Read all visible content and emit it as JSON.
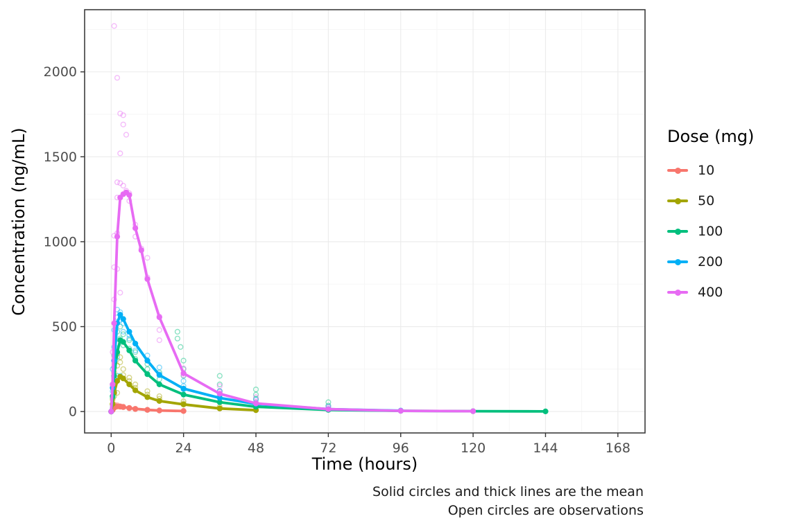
{
  "chart_data": {
    "type": "scatter",
    "title": "",
    "xlabel": "Time (hours)",
    "ylabel": "Concentration (ng/mL)",
    "legend_title": "Dose (mg)",
    "legend_position": "right",
    "grid": true,
    "caption": [
      "Solid circles and thick lines are the mean",
      "Open circles are observations"
    ],
    "xlim": [
      -8.8,
      177
    ],
    "ylim": [
      -126,
      2366
    ],
    "x_ticks": [
      0,
      24,
      48,
      72,
      96,
      120,
      144,
      168
    ],
    "y_ticks": [
      0,
      500,
      1000,
      1500,
      2000
    ],
    "axis_text_color": "#4d4d4d",
    "panel_border_color": "#3c3c3c",
    "grid_major_color": "#ebebeb",
    "grid_minor_color": "#f5f5f5",
    "series": [
      {
        "name": "10",
        "color": "#F8766D",
        "mean": [
          [
            0,
            0
          ],
          [
            0.5,
            10
          ],
          [
            1,
            22
          ],
          [
            2,
            30
          ],
          [
            3,
            29
          ],
          [
            4,
            26
          ],
          [
            6,
            21
          ],
          [
            8,
            16
          ],
          [
            12,
            10
          ],
          [
            16,
            6
          ],
          [
            24,
            3
          ]
        ],
        "observations": [
          [
            0.5,
            8
          ],
          [
            0.5,
            14
          ],
          [
            1,
            24
          ],
          [
            1,
            42
          ],
          [
            2,
            34
          ],
          [
            2,
            38
          ],
          [
            3,
            28
          ],
          [
            3,
            32
          ],
          [
            4,
            26
          ],
          [
            4,
            30
          ],
          [
            6,
            18
          ],
          [
            6,
            22
          ],
          [
            8,
            13
          ],
          [
            8,
            16
          ],
          [
            12,
            9
          ],
          [
            12,
            11
          ],
          [
            16,
            6
          ],
          [
            16,
            7
          ],
          [
            24,
            3
          ],
          [
            24,
            4
          ]
        ]
      },
      {
        "name": "50",
        "color": "#A3A500",
        "mean": [
          [
            0,
            0
          ],
          [
            0.5,
            45
          ],
          [
            1,
            110
          ],
          [
            2,
            180
          ],
          [
            3,
            205
          ],
          [
            4,
            195
          ],
          [
            6,
            160
          ],
          [
            8,
            125
          ],
          [
            12,
            85
          ],
          [
            16,
            62
          ],
          [
            24,
            42
          ],
          [
            36,
            18
          ],
          [
            48,
            8
          ]
        ],
        "observations": [
          [
            0.5,
            40
          ],
          [
            0.5,
            70
          ],
          [
            1,
            90
          ],
          [
            1,
            150
          ],
          [
            1,
            230
          ],
          [
            2,
            110
          ],
          [
            2,
            270
          ],
          [
            2,
            340
          ],
          [
            3,
            290
          ],
          [
            3,
            320
          ],
          [
            4,
            215
          ],
          [
            4,
            250
          ],
          [
            6,
            180
          ],
          [
            6,
            200
          ],
          [
            8,
            140
          ],
          [
            8,
            160
          ],
          [
            12,
            100
          ],
          [
            12,
            120
          ],
          [
            16,
            75
          ],
          [
            16,
            90
          ],
          [
            24,
            48
          ],
          [
            24,
            60
          ],
          [
            36,
            20
          ],
          [
            36,
            28
          ],
          [
            48,
            8
          ],
          [
            48,
            12
          ]
        ]
      },
      {
        "name": "100",
        "color": "#00BF7D",
        "mean": [
          [
            0,
            0
          ],
          [
            0.5,
            90
          ],
          [
            1,
            210
          ],
          [
            2,
            350
          ],
          [
            3,
            420
          ],
          [
            4,
            410
          ],
          [
            6,
            360
          ],
          [
            8,
            300
          ],
          [
            12,
            220
          ],
          [
            16,
            160
          ],
          [
            24,
            100
          ],
          [
            36,
            55
          ],
          [
            48,
            28
          ],
          [
            72,
            10
          ],
          [
            96,
            4
          ],
          [
            120,
            2
          ],
          [
            144,
            1
          ]
        ],
        "observations": [
          [
            0.5,
            80
          ],
          [
            0.5,
            160
          ],
          [
            1,
            120
          ],
          [
            1,
            260
          ],
          [
            1,
            330
          ],
          [
            2,
            210
          ],
          [
            2,
            400
          ],
          [
            2,
            470
          ],
          [
            3,
            430
          ],
          [
            3,
            500
          ],
          [
            4,
            390
          ],
          [
            4,
            455
          ],
          [
            6,
            370
          ],
          [
            6,
            420
          ],
          [
            8,
            310
          ],
          [
            8,
            350
          ],
          [
            12,
            250
          ],
          [
            12,
            280
          ],
          [
            16,
            190
          ],
          [
            16,
            230
          ],
          [
            22,
            470
          ],
          [
            22,
            430
          ],
          [
            23,
            380
          ],
          [
            24,
            210
          ],
          [
            24,
            250
          ],
          [
            24,
            300
          ],
          [
            36,
            120
          ],
          [
            36,
            160
          ],
          [
            36,
            210
          ],
          [
            48,
            75
          ],
          [
            48,
            100
          ],
          [
            48,
            130
          ],
          [
            72,
            35
          ],
          [
            72,
            55
          ]
        ]
      },
      {
        "name": "200",
        "color": "#00B0F6",
        "mean": [
          [
            0,
            0
          ],
          [
            0.5,
            140
          ],
          [
            1,
            300
          ],
          [
            2,
            520
          ],
          [
            3,
            570
          ],
          [
            4,
            545
          ],
          [
            6,
            470
          ],
          [
            8,
            400
          ],
          [
            12,
            300
          ],
          [
            16,
            215
          ],
          [
            24,
            135
          ],
          [
            36,
            80
          ],
          [
            48,
            45
          ],
          [
            72,
            14
          ],
          [
            96,
            5
          ]
        ],
        "observations": [
          [
            0.5,
            120
          ],
          [
            0.5,
            250
          ],
          [
            1,
            200
          ],
          [
            1,
            380
          ],
          [
            1,
            480
          ],
          [
            2,
            320
          ],
          [
            2,
            555
          ],
          [
            2,
            600
          ],
          [
            3,
            210
          ],
          [
            3,
            540
          ],
          [
            3,
            585
          ],
          [
            4,
            470
          ],
          [
            4,
            520
          ],
          [
            6,
            430
          ],
          [
            6,
            450
          ],
          [
            8,
            360
          ],
          [
            8,
            400
          ],
          [
            12,
            300
          ],
          [
            12,
            330
          ],
          [
            16,
            220
          ],
          [
            16,
            260
          ],
          [
            24,
            130
          ],
          [
            24,
            150
          ],
          [
            24,
            180
          ],
          [
            36,
            95
          ],
          [
            36,
            120
          ],
          [
            48,
            50
          ],
          [
            48,
            70
          ],
          [
            72,
            15
          ],
          [
            72,
            28
          ],
          [
            96,
            6
          ]
        ]
      },
      {
        "name": "400",
        "color": "#E76BF3",
        "mean": [
          [
            0,
            0
          ],
          [
            0.5,
            160
          ],
          [
            1,
            520
          ],
          [
            2,
            1030
          ],
          [
            3,
            1260
          ],
          [
            4,
            1280
          ],
          [
            5,
            1290
          ],
          [
            6,
            1275
          ],
          [
            8,
            1080
          ],
          [
            10,
            950
          ],
          [
            12,
            780
          ],
          [
            16,
            555
          ],
          [
            24,
            225
          ],
          [
            36,
            105
          ],
          [
            48,
            48
          ],
          [
            72,
            14
          ],
          [
            96,
            4
          ],
          [
            120,
            2
          ]
        ],
        "observations": [
          [
            0.5,
            150
          ],
          [
            0.5,
            350
          ],
          [
            1,
            300
          ],
          [
            1,
            660
          ],
          [
            1,
            850
          ],
          [
            1,
            1035
          ],
          [
            1,
            2270
          ],
          [
            2,
            840
          ],
          [
            2,
            1050
          ],
          [
            2,
            1260
          ],
          [
            2,
            1350
          ],
          [
            2,
            1965
          ],
          [
            3,
            700
          ],
          [
            3,
            1345
          ],
          [
            3,
            1520
          ],
          [
            3,
            1755
          ],
          [
            4,
            1330
          ],
          [
            4,
            1690
          ],
          [
            4,
            1745
          ],
          [
            5,
            1300
          ],
          [
            5,
            1630
          ],
          [
            6,
            1240
          ],
          [
            6,
            1285
          ],
          [
            8,
            1030
          ],
          [
            8,
            1100
          ],
          [
            10,
            960
          ],
          [
            12,
            790
          ],
          [
            12,
            905
          ],
          [
            16,
            420
          ],
          [
            16,
            480
          ],
          [
            16,
            560
          ],
          [
            24,
            215
          ],
          [
            24,
            255
          ],
          [
            36,
            115
          ],
          [
            36,
            150
          ],
          [
            48,
            55
          ],
          [
            48,
            85
          ],
          [
            72,
            25
          ]
        ]
      }
    ]
  }
}
